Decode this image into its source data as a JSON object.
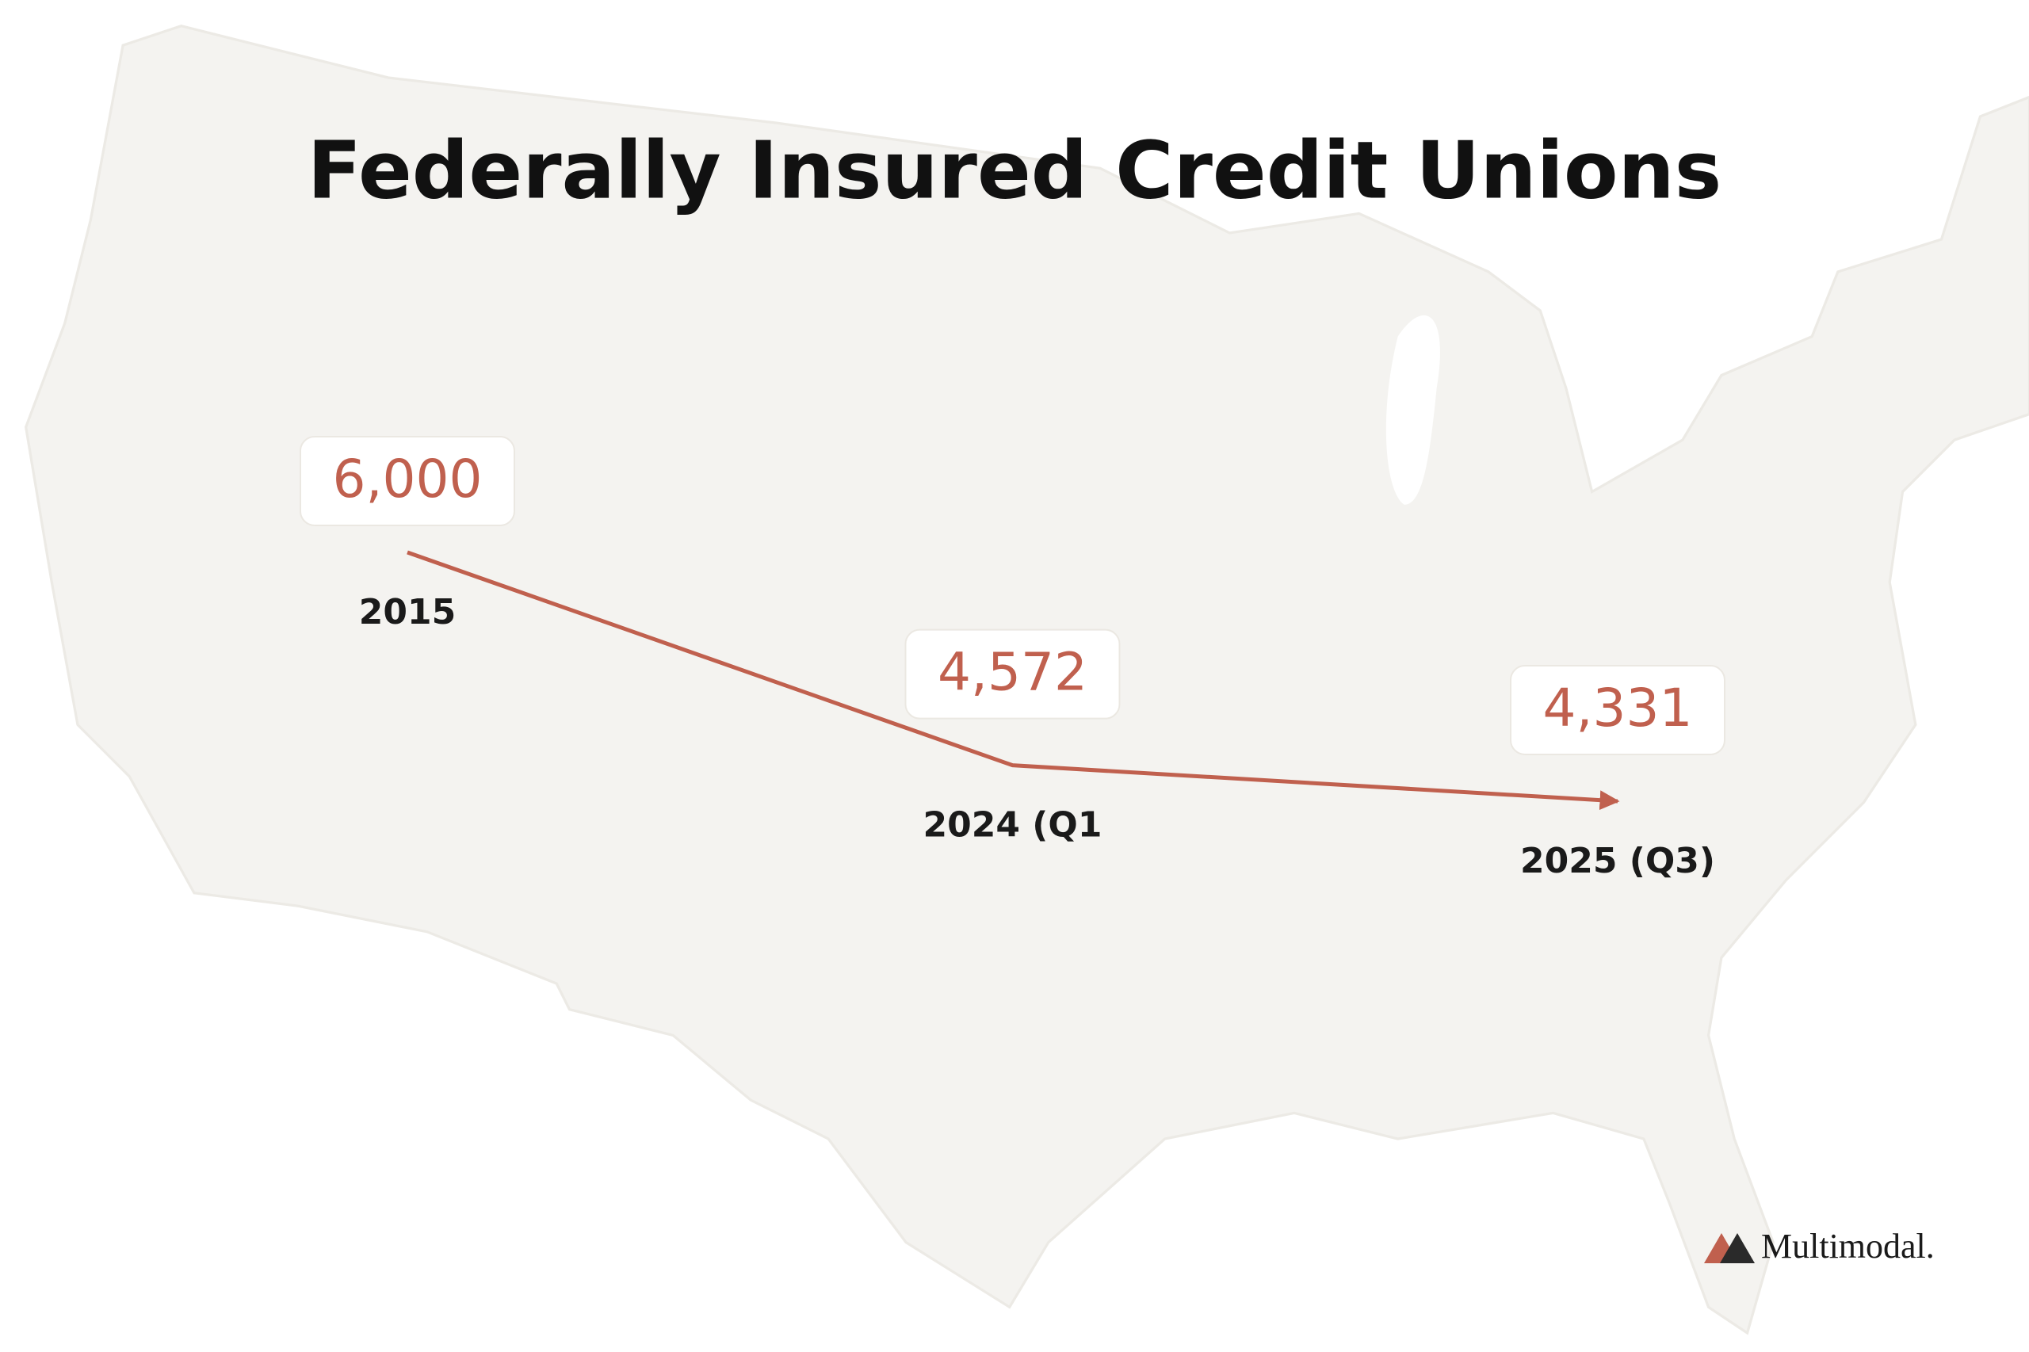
{
  "chart_data": {
    "type": "line",
    "title": "Federally Insured Credit Unions",
    "categories": [
      "2015",
      "2024 (Q1",
      "2025 (Q3)"
    ],
    "values": [
      6000,
      4572,
      4331
    ],
    "value_labels": [
      "6,000",
      "4,572",
      "4,331"
    ],
    "color": "#c0604e"
  },
  "logo": "Multimodal."
}
